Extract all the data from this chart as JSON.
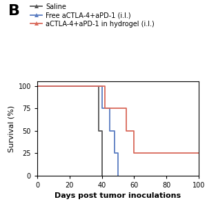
{
  "title_label": "B",
  "xlabel": "Days post tumor inoculations",
  "ylabel": "Survival (%)",
  "xlim": [
    0,
    100
  ],
  "ylim": [
    0,
    105
  ],
  "xticks": [
    0,
    20,
    40,
    60,
    80,
    100
  ],
  "yticks": [
    0,
    25,
    50,
    75,
    100
  ],
  "saline_x": [
    0,
    38,
    38,
    40,
    40
  ],
  "saline_y": [
    100,
    100,
    50,
    50,
    0
  ],
  "saline_color": "#555555",
  "free_x": [
    0,
    40,
    40,
    45,
    45,
    48,
    48,
    50,
    50
  ],
  "free_y": [
    100,
    100,
    75,
    75,
    50,
    50,
    25,
    25,
    0
  ],
  "free_color": "#5b7dc1",
  "hydrogel_x": [
    0,
    42,
    42,
    55,
    55,
    60,
    60,
    100
  ],
  "hydrogel_y": [
    100,
    100,
    75,
    75,
    50,
    50,
    25,
    25
  ],
  "hydrogel_color": "#d9695a",
  "legend_labels": [
    "Saline",
    "Free aCTLA-4+aPD-1 (i.l.)",
    "aCTLA-4+aPD-1 in hydrogel (i.l.)"
  ],
  "markersize": 4,
  "linewidth": 1.3,
  "background_color": "#ffffff",
  "tick_fontsize": 7,
  "label_fontsize": 8,
  "legend_fontsize": 7,
  "B_fontsize": 16
}
